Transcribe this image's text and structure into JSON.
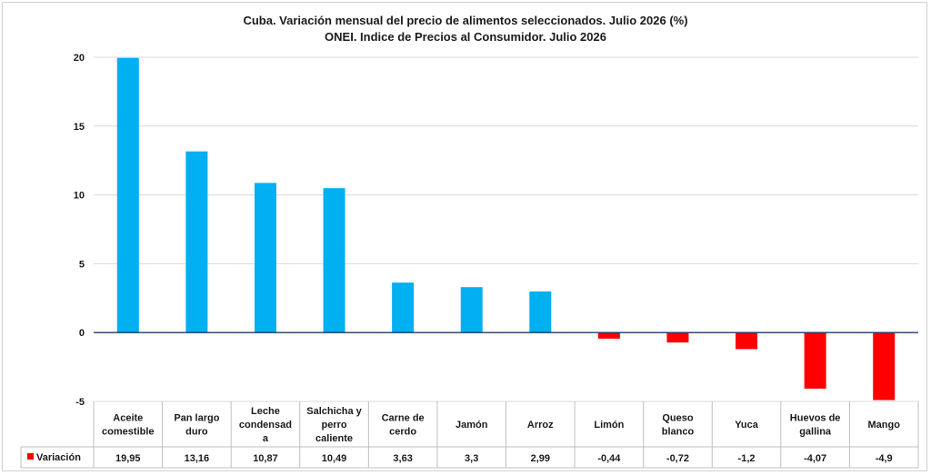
{
  "chart_data": {
    "type": "bar",
    "title": "Cuba. Variación mensual del precio de alimentos seleccionados. Julio 2026 (%)",
    "subtitle": "ONEI. Indice de Precios al Consumidor. Julio  2026",
    "categories": [
      [
        "Aceite",
        "comestible"
      ],
      [
        "Pan largo",
        "duro"
      ],
      [
        "Leche",
        "condensad",
        "a"
      ],
      [
        "Salchicha y",
        "perro",
        "caliente"
      ],
      [
        "Carne de",
        "cerdo"
      ],
      [
        "Jamón"
      ],
      [
        "Arroz"
      ],
      [
        "Limón"
      ],
      [
        "Queso",
        "blanco"
      ],
      [
        "Yuca"
      ],
      [
        "Huevos de",
        "gallina"
      ],
      [
        "Mango"
      ]
    ],
    "series": [
      {
        "name": "Variación",
        "values": [
          19.95,
          13.16,
          10.87,
          10.49,
          3.63,
          3.3,
          2.99,
          -0.44,
          -0.72,
          -1.2,
          -4.07,
          -4.9
        ],
        "value_labels": [
          "19,95",
          "13,16",
          "10,87",
          "10,49",
          "3,63",
          "3,3",
          "2,99",
          "-0,44",
          "-0,72",
          "-1,2",
          "-4,07",
          "-4,9"
        ]
      }
    ],
    "ylim": [
      -5,
      20
    ],
    "yticks": [
      20,
      15,
      10,
      5,
      0,
      -5
    ],
    "grid": true,
    "legend": "data-table-left",
    "colors": {
      "positive": "#00b0f0",
      "negative": "#ff0000",
      "grid": "#d9d9d9",
      "axis": "#1f3864"
    }
  }
}
